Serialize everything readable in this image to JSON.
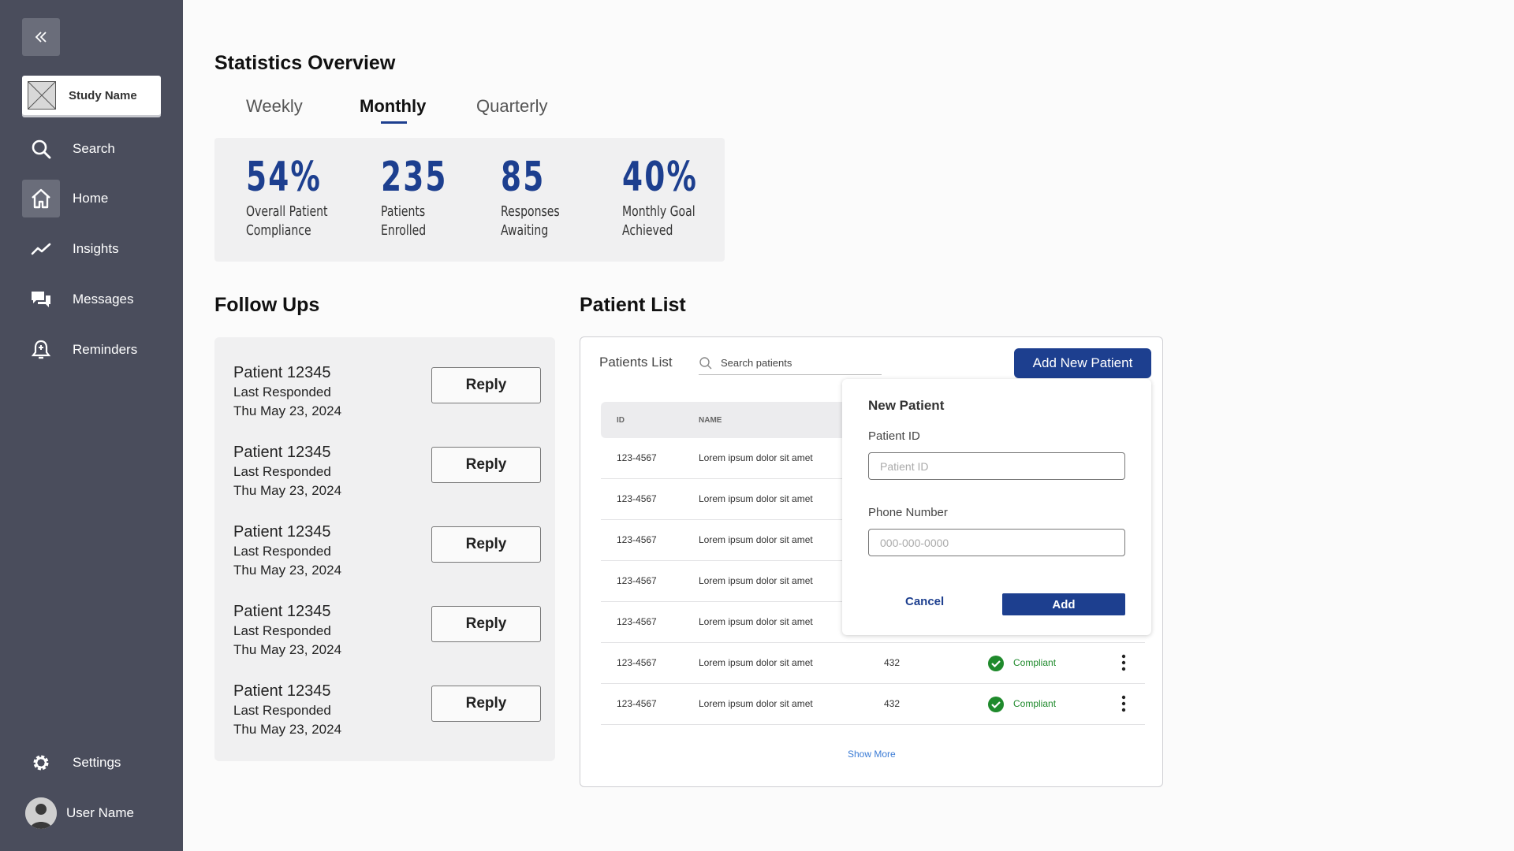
{
  "sidebar": {
    "study_name": "Study Name",
    "items": [
      {
        "label": "Search",
        "icon": "search-icon"
      },
      {
        "label": "Home",
        "icon": "home-icon",
        "active": true
      },
      {
        "label": "Insights",
        "icon": "trend-line-icon"
      },
      {
        "label": "Messages",
        "icon": "chat-bubbles-icon"
      },
      {
        "label": "Reminders",
        "icon": "bell-icon"
      }
    ],
    "settings_label": "Settings",
    "user_name": "User Name"
  },
  "stats": {
    "title": "Statistics Overview",
    "tabs": [
      "Weekly",
      "Monthly",
      "Quarterly"
    ],
    "active_tab": "Monthly",
    "cards": [
      {
        "value": "54%",
        "label": "Overall Patient\nCompliance"
      },
      {
        "value": "235",
        "label": "Patients\nEnrolled"
      },
      {
        "value": "85",
        "label": "Responses\nAwaiting"
      },
      {
        "value": "40%",
        "label": "Monthly Goal\nAchieved"
      }
    ]
  },
  "followups": {
    "title": "Follow Ups",
    "items": [
      {
        "name": "Patient 12345",
        "sub": "Last Responded",
        "date": "Thu May 23, 2024",
        "button": "Reply"
      },
      {
        "name": "Patient 12345",
        "sub": "Last Responded",
        "date": "Thu May 23, 2024",
        "button": "Reply"
      },
      {
        "name": "Patient 12345",
        "sub": "Last Responded",
        "date": "Thu May 23, 2024",
        "button": "Reply"
      },
      {
        "name": "Patient 12345",
        "sub": "Last Responded",
        "date": "Thu May 23, 2024",
        "button": "Reply"
      },
      {
        "name": "Patient 12345",
        "sub": "Last Responded",
        "date": "Thu May 23, 2024",
        "button": "Reply"
      }
    ]
  },
  "patients": {
    "title": "Patient List",
    "panel_title": "Patients List",
    "search_placeholder": "Search patients",
    "add_button": "Add New Patient",
    "columns": [
      "ID",
      "NAME"
    ],
    "rows": [
      {
        "id": "123-4567",
        "name": "Lorem ipsum dolor sit amet",
        "num": "",
        "status": ""
      },
      {
        "id": "123-4567",
        "name": "Lorem ipsum dolor sit amet",
        "num": "",
        "status": ""
      },
      {
        "id": "123-4567",
        "name": "Lorem ipsum dolor sit amet",
        "num": "",
        "status": ""
      },
      {
        "id": "123-4567",
        "name": "Lorem ipsum dolor sit amet",
        "num": "",
        "status": ""
      },
      {
        "id": "123-4567",
        "name": "Lorem ipsum dolor sit amet",
        "num": "",
        "status": ""
      },
      {
        "id": "123-4567",
        "name": "Lorem ipsum dolor sit amet",
        "num": "432",
        "status": "Compliant"
      },
      {
        "id": "123-4567",
        "name": "Lorem ipsum dolor sit amet",
        "num": "432",
        "status": "Compliant"
      }
    ],
    "show_more": "Show More"
  },
  "new_patient": {
    "title": "New Patient",
    "id_label": "Patient ID",
    "id_placeholder": "Patient ID",
    "phone_label": "Phone Number",
    "phone_placeholder": "000-000-0000",
    "cancel": "Cancel",
    "add": "Add"
  },
  "colors": {
    "sidebar_bg": "#4a4d5c",
    "accent": "#1d3f8f",
    "compliant": "#1f8a2c"
  }
}
